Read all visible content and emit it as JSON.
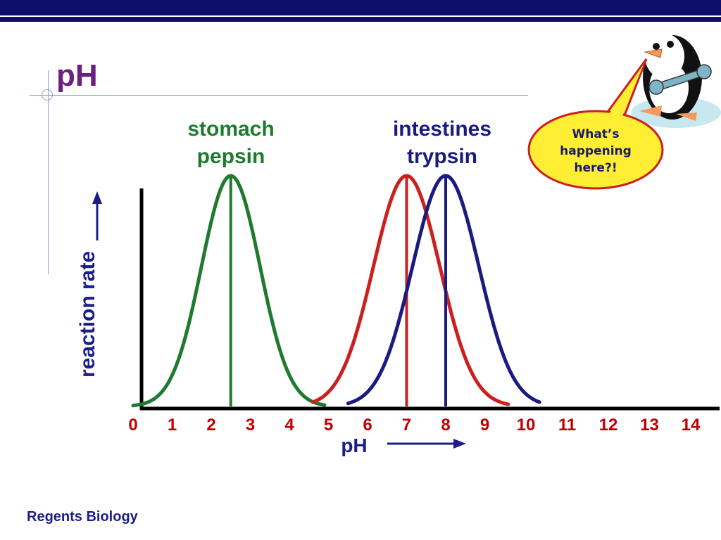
{
  "slide": {
    "title": "pH",
    "footer": "Regents Biology",
    "callout": {
      "line1": "What’s",
      "line2": "happening",
      "line3": "here?!"
    }
  },
  "colors": {
    "title": "#6b1f7e",
    "bar": "#0d0d6b",
    "pepsin": "#1e7a2e",
    "trypsin_red": "#cc1f1f",
    "trypsin_blue": "#1a1a80",
    "tick_labels": "#c00000",
    "axis_label": "#1c1c8a"
  },
  "icons": [
    "penguin-icon",
    "wrench-icon",
    "arrow-up-icon",
    "arrow-right-icon"
  ],
  "chart_data": {
    "type": "line",
    "xlabel": "pH",
    "ylabel": "reaction rate",
    "xlim": [
      0,
      14
    ],
    "x_ticks": [
      "0",
      "1",
      "2",
      "3",
      "4",
      "5",
      "6",
      "7",
      "8",
      "9",
      "10",
      "11",
      "12",
      "13",
      "14"
    ],
    "grid": false,
    "series": [
      {
        "label_line1": "stomach",
        "label_line2": "pepsin",
        "peak_ph": 2.5,
        "spread": 0.75,
        "x_range": [
          0,
          4.9
        ],
        "color": "#1e7a2e"
      },
      {
        "label_line1": "",
        "label_line2": "",
        "peak_ph": 7,
        "spread": 0.85,
        "x_range": [
          4.6,
          9.6
        ],
        "color": "#cc1f1f"
      },
      {
        "label_line1": "intestines",
        "label_line2": "trypsin",
        "peak_ph": 8,
        "spread": 0.85,
        "x_range": [
          5.5,
          10.4
        ],
        "color": "#1a1a80"
      }
    ]
  }
}
